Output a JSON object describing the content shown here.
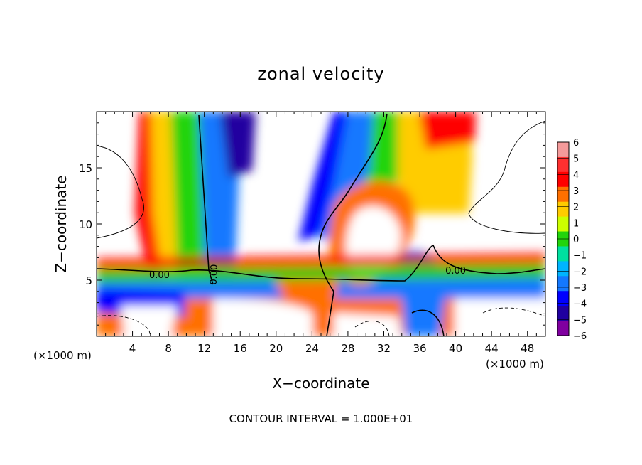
{
  "chart_data": {
    "type": "heatmap",
    "title": "zonal velocity",
    "xlabel": "X−coordinate",
    "ylabel": "Z−coordinate",
    "x_unit_left": "(×1000 m)",
    "x_unit_right": "(×1000 m)",
    "footer": "CONTOUR INTERVAL = 1.000E+01",
    "xlim": [
      0,
      50
    ],
    "ylim": [
      0,
      20
    ],
    "x_ticks": [
      4,
      8,
      12,
      16,
      20,
      24,
      28,
      32,
      36,
      40,
      44,
      48
    ],
    "x_tick_labels": [
      "4",
      "8",
      "12",
      "16",
      "20",
      "24",
      "28",
      "32",
      "36",
      "40",
      "44",
      "48"
    ],
    "y_ticks": [
      5,
      10,
      15
    ],
    "y_tick_labels": [
      "5",
      "10",
      "15"
    ],
    "colorbar": {
      "levels": [
        6,
        5,
        4,
        3,
        2,
        1,
        0,
        -1,
        -2,
        -3,
        -4,
        -5,
        -6
      ],
      "labels": [
        "6",
        "5",
        "4",
        "3",
        "2",
        "1",
        "0",
        "−1",
        "−2",
        "−3",
        "−4",
        "−5",
        "−6"
      ],
      "colors": [
        "#f49a9a",
        "#ff3030",
        "#ff0000",
        "#ff7000",
        "#ffcc00",
        "#ccff00",
        "#22d40c",
        "#00e0a0",
        "#00b4ff",
        "#1478ff",
        "#0000ff",
        "#2000a0",
        "#8000a0"
      ]
    },
    "contour_labels": [
      {
        "text": "0.00",
        "x": 7,
        "z": 5.5
      },
      {
        "text": "0.00",
        "x": 13,
        "z": 5.5
      },
      {
        "text": "0.00",
        "x": 40,
        "z": 5.9
      }
    ]
  }
}
